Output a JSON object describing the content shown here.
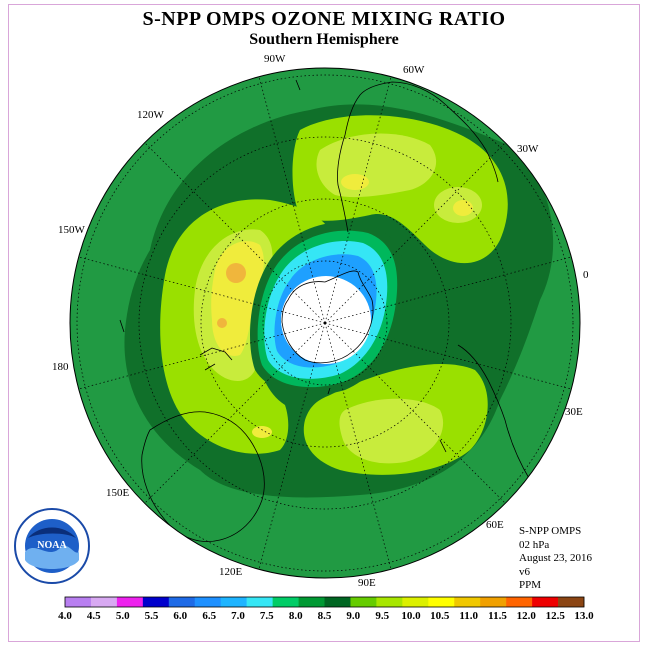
{
  "title": "S-NPP OMPS OZONE MIXING RATIO",
  "subtitle": "Southern Hemisphere",
  "longitude_labels": [
    "90W",
    "60W",
    "30W",
    "0",
    "30E",
    "60E",
    "90E",
    "120E",
    "150E",
    "180",
    "150W",
    "120W"
  ],
  "logo_text": "NOAA",
  "info": {
    "instrument": "S-NPP OMPS",
    "level": "02 hPa",
    "date": "August 23, 2016",
    "version": "v6",
    "units": "PPM"
  },
  "colorbar": {
    "ticks": [
      "4.0",
      "4.5",
      "5.0",
      "5.5",
      "6.0",
      "6.5",
      "7.0",
      "7.5",
      "8.0",
      "8.5",
      "9.0",
      "9.5",
      "10.0",
      "10.5",
      "11.0",
      "11.5",
      "12.0",
      "12.5",
      "13.0"
    ],
    "colors": [
      "#b87ff0",
      "#d8a9f2",
      "#ee22ee",
      "#0000cc",
      "#1e6ae6",
      "#1e90ff",
      "#1eb4ff",
      "#35e6f5",
      "#00cc66",
      "#009933",
      "#006622",
      "#66cc00",
      "#a8e600",
      "#dcf000",
      "#ffff00",
      "#f0c800",
      "#f0a000",
      "#ff6400",
      "#ee0000",
      "#8b4513"
    ]
  },
  "colors": {
    "outer_field": "#219a43",
    "dark_ring": "#10702a",
    "green_light": "#9ae000",
    "lime": "#c8ec3c",
    "yellow": "#f0ec3c",
    "orange": "#f0b63c",
    "cyan": "#35e6f5",
    "blue": "#1ea0ff",
    "polar_night": "#ffffff"
  }
}
